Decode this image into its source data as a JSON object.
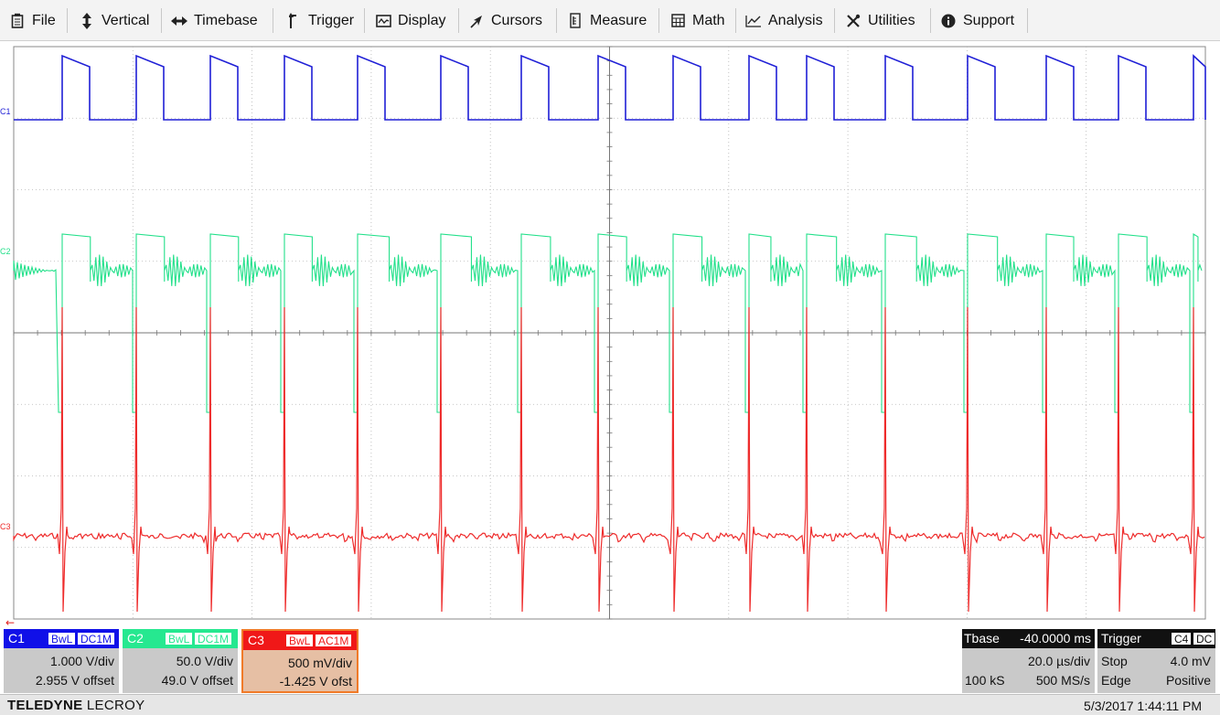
{
  "menu": {
    "items": [
      {
        "label": "File",
        "icon": "file-icon"
      },
      {
        "label": "Vertical",
        "icon": "vertical-arrows-icon"
      },
      {
        "label": "Timebase",
        "icon": "horizontal-arrows-icon"
      },
      {
        "label": "Trigger",
        "icon": "trigger-icon"
      },
      {
        "label": "Display",
        "icon": "display-icon"
      },
      {
        "label": "Cursors",
        "icon": "cursor-icon"
      },
      {
        "label": "Measure",
        "icon": "measure-icon"
      },
      {
        "label": "Math",
        "icon": "calculator-icon"
      },
      {
        "label": "Analysis",
        "icon": "analysis-icon"
      },
      {
        "label": "Utilities",
        "icon": "wrench-icon"
      },
      {
        "label": "Support",
        "icon": "info-icon"
      }
    ]
  },
  "traces": {
    "c1": {
      "label": "C1",
      "color": "#1f1fd6"
    },
    "c2": {
      "label": "C2",
      "color": "#22e08a"
    },
    "c3": {
      "label": "C3",
      "color": "#ee2b2b"
    }
  },
  "channels": {
    "c1": {
      "name": "C1",
      "bw": "BwL",
      "coupling": "DC1M",
      "vdiv": "1.000 V/div",
      "offset": "2.955 V offset",
      "color": "#1010e8"
    },
    "c2": {
      "name": "C2",
      "bw": "BwL",
      "coupling": "DC1M",
      "vdiv": "50.0 V/div",
      "offset": "49.0 V offset",
      "color": "#26e890"
    },
    "c3": {
      "name": "C3",
      "bw": "BwL",
      "coupling": "AC1M",
      "vdiv": "500 mV/div",
      "offset": "-1.425 V ofst",
      "color": "#f01818"
    }
  },
  "timebase": {
    "title": "Tbase",
    "delay": "-40.0000 ms",
    "tdiv": "20.0 µs/div",
    "samples": "100 kS",
    "rate": "500 MS/s"
  },
  "trigger": {
    "title": "Trigger",
    "source": "C4",
    "coupling": "DC",
    "mode": "Stop",
    "level": "4.0 mV",
    "type": "Edge",
    "slope": "Positive"
  },
  "footer": {
    "brand_bold": "TELEDYNE",
    "brand_light": "LECROY",
    "timestamp": "5/3/2017 1:44:11 PM"
  }
}
